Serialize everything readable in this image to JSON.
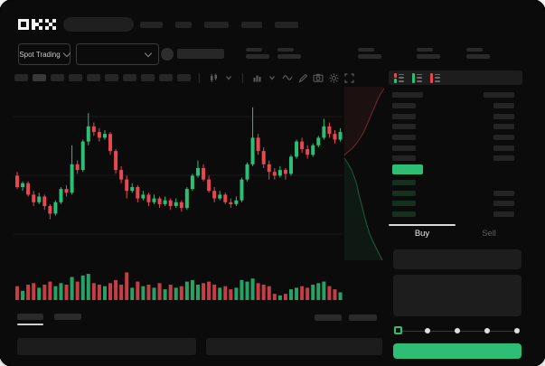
{
  "header": {
    "logo": "OKX",
    "search_placeholder": "",
    "nav_placeholder_count": 5
  },
  "market_bar": {
    "market_type_label": "Spot Trading",
    "stat_placeholder_count": 5
  },
  "chart_toolbar": {
    "timeframe_placeholder_count": 10,
    "active_timeframe_index": 1,
    "icons": [
      "candle-style",
      "chevron-down",
      "indicators",
      "chevron-down",
      "line-tool",
      "draw-tool",
      "camera",
      "settings",
      "fullscreen"
    ]
  },
  "orderbook": {
    "view_icons": [
      "book-combined",
      "book-bids-only",
      "book-asks-only"
    ],
    "ask_row_count": 6,
    "bid_row_count": 4,
    "bid_rows_with_right_bar": [
      1,
      2,
      3
    ],
    "colors": {
      "ask_bar": "#242424",
      "bid_bar": "#16301f",
      "price_bar": "#2ebd74"
    }
  },
  "trade_panel": {
    "tabs": [
      {
        "label": "Buy",
        "active": true
      },
      {
        "label": "Sell",
        "active": false
      }
    ],
    "inputs": [
      {
        "value": "",
        "placeholder": ""
      },
      {
        "value": "",
        "placeholder": ""
      }
    ],
    "slider_stop_count": 5,
    "slider_selected_stop": 0,
    "submit_label": "",
    "submit_color": "#2ebd74"
  },
  "bottom_bar": {
    "tab_placeholder_count": 2,
    "active_tab_index": 0,
    "right_placeholder_count": 2,
    "panel_count": 2
  },
  "chart_data": {
    "type": "candlestick",
    "title": "",
    "xlabel": "",
    "ylabel": "",
    "axes_labels_visible": false,
    "grid": "horizontal-faint",
    "up_color": "#2ebd74",
    "down_color": "#e8474f",
    "candles_ohlc": [
      [
        52,
        54,
        45,
        46
      ],
      [
        46,
        49,
        44,
        48
      ],
      [
        48,
        49,
        41,
        42
      ],
      [
        42,
        44,
        36,
        38
      ],
      [
        38,
        43,
        37,
        41
      ],
      [
        41,
        42,
        34,
        36
      ],
      [
        36,
        37,
        29,
        32
      ],
      [
        32,
        39,
        31,
        38
      ],
      [
        38,
        46,
        37,
        45
      ],
      [
        45,
        47,
        41,
        43
      ],
      [
        43,
        68,
        42,
        58
      ],
      [
        58,
        60,
        53,
        55
      ],
      [
        55,
        71,
        54,
        70
      ],
      [
        70,
        85,
        68,
        78
      ],
      [
        78,
        80,
        73,
        75
      ],
      [
        75,
        77,
        70,
        72
      ],
      [
        72,
        76,
        71,
        74
      ],
      [
        74,
        75,
        63,
        65
      ],
      [
        65,
        66,
        53,
        55
      ],
      [
        55,
        57,
        48,
        50
      ],
      [
        50,
        52,
        40,
        44
      ],
      [
        44,
        48,
        43,
        46
      ],
      [
        46,
        47,
        38,
        40
      ],
      [
        40,
        44,
        39,
        42
      ],
      [
        42,
        43,
        36,
        38
      ],
      [
        38,
        42,
        37,
        40
      ],
      [
        40,
        41,
        35,
        37
      ],
      [
        37,
        41,
        36,
        39
      ],
      [
        39,
        40,
        34,
        36
      ],
      [
        36,
        40,
        35,
        38
      ],
      [
        38,
        39,
        33,
        35
      ],
      [
        35,
        46,
        34,
        45
      ],
      [
        45,
        53,
        44,
        52
      ],
      [
        52,
        60,
        51,
        56
      ],
      [
        56,
        58,
        49,
        50
      ],
      [
        50,
        52,
        43,
        44
      ],
      [
        44,
        46,
        38,
        40
      ],
      [
        40,
        44,
        39,
        42
      ],
      [
        42,
        43,
        37,
        38
      ],
      [
        38,
        40,
        35,
        37
      ],
      [
        37,
        41,
        36,
        39
      ],
      [
        39,
        51,
        38,
        50
      ],
      [
        50,
        59,
        49,
        58
      ],
      [
        58,
        88,
        57,
        72
      ],
      [
        72,
        74,
        63,
        65
      ],
      [
        65,
        67,
        56,
        58
      ],
      [
        58,
        60,
        50,
        54
      ],
      [
        54,
        56,
        50,
        52
      ],
      [
        52,
        57,
        51,
        55
      ],
      [
        55,
        56,
        50,
        53
      ],
      [
        53,
        63,
        52,
        62
      ],
      [
        62,
        71,
        61,
        70
      ],
      [
        70,
        72,
        64,
        66
      ],
      [
        66,
        68,
        61,
        63
      ],
      [
        63,
        69,
        62,
        68
      ],
      [
        68,
        73,
        67,
        72
      ],
      [
        72,
        82,
        71,
        78
      ],
      [
        78,
        80,
        72,
        74
      ],
      [
        74,
        76,
        69,
        71
      ],
      [
        71,
        77,
        70,
        75
      ]
    ],
    "volumes": [
      0.45,
      0.3,
      0.5,
      0.55,
      0.4,
      0.5,
      0.6,
      0.45,
      0.55,
      0.5,
      0.75,
      0.6,
      0.8,
      0.85,
      0.55,
      0.5,
      0.45,
      0.55,
      0.65,
      0.5,
      0.9,
      0.4,
      0.6,
      0.45,
      0.5,
      0.4,
      0.55,
      0.35,
      0.5,
      0.4,
      0.45,
      0.6,
      0.65,
      0.5,
      0.55,
      0.6,
      0.5,
      0.4,
      0.45,
      0.35,
      0.4,
      0.65,
      0.6,
      0.7,
      0.55,
      0.5,
      0.45,
      0.2,
      0.15,
      0.2,
      0.35,
      0.4,
      0.45,
      0.4,
      0.5,
      0.55,
      0.6,
      0.45,
      0.35,
      0.25
    ],
    "depth_sidebar": {
      "asks_color": "#e05050",
      "bids_color": "#2ebd74",
      "ask_curve": [
        [
          2,
          77
        ],
        [
          6,
          73
        ],
        [
          11,
          69
        ],
        [
          16,
          63
        ],
        [
          20,
          57
        ],
        [
          24,
          50
        ],
        [
          27,
          43
        ],
        [
          30,
          36
        ],
        [
          33,
          29
        ],
        [
          36,
          22
        ],
        [
          39,
          15
        ],
        [
          42,
          9
        ],
        [
          46,
          3
        ]
      ],
      "bid_curve": [
        [
          2,
          80
        ],
        [
          6,
          86
        ],
        [
          10,
          93
        ],
        [
          13,
          101
        ],
        [
          16,
          110
        ],
        [
          18,
          120
        ],
        [
          21,
          131
        ],
        [
          24,
          143
        ],
        [
          27,
          154
        ],
        [
          30,
          164
        ],
        [
          34,
          173
        ],
        [
          38,
          181
        ],
        [
          41,
          187
        ],
        [
          44,
          193
        ]
      ]
    }
  }
}
